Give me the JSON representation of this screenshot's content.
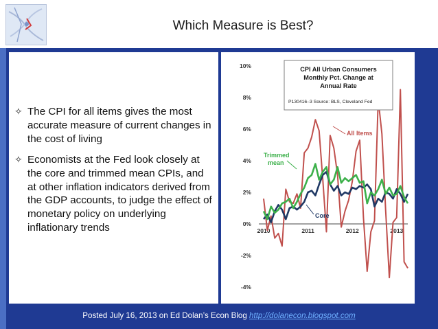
{
  "slide": {
    "title": "Which Measure is Best?",
    "bullets": [
      "The CPI for all items gives the most accurate measure of current changes in the cost of living",
      "Economists at the Fed look closely at the core and trimmed mean CPIs, and at other inflation indicators derived from the GDP accounts, to judge the effect of monetary policy on underlying inflationary trends"
    ],
    "bullet_icon": "four-point-star-outline",
    "footer_text": "Posted July 16, 2013 on Ed Dolan’s Econ Blog ",
    "footer_link": "http://dolanecon.blogspot.com"
  },
  "chart_data": {
    "type": "line",
    "title": "CPI All Urban Consumers Monthly Pct. Change at Annual Rate",
    "subtitle": "P130416–3 Source: BLS, Cleveland Fed",
    "xlabel": "",
    "ylabel": "",
    "x_tick_labels": [
      "2010",
      "2011",
      "2012",
      "2013"
    ],
    "y_tick_labels": [
      "10%",
      "8%",
      "6%",
      "4%",
      "2%",
      "0%",
      "-2%",
      "-4%"
    ],
    "y_ticks": [
      10,
      8,
      6,
      4,
      2,
      0,
      -2,
      -4
    ],
    "ylim": [
      -4,
      10
    ],
    "x": [
      "2010-01",
      "2010-02",
      "2010-03",
      "2010-04",
      "2010-05",
      "2010-06",
      "2010-07",
      "2010-08",
      "2010-09",
      "2010-10",
      "2010-11",
      "2010-12",
      "2011-01",
      "2011-02",
      "2011-03",
      "2011-04",
      "2011-05",
      "2011-06",
      "2011-07",
      "2011-08",
      "2011-09",
      "2011-10",
      "2011-11",
      "2011-12",
      "2012-01",
      "2012-02",
      "2012-03",
      "2012-04",
      "2012-05",
      "2012-06",
      "2012-07",
      "2012-08",
      "2012-09",
      "2012-10",
      "2012-11",
      "2012-12",
      "2013-01",
      "2013-02",
      "2013-03",
      "2013-04"
    ],
    "grid": false,
    "colors": {
      "all_items": "#c0504d",
      "core": "#1f3864",
      "trimmed_mean": "#3cb04a"
    },
    "annotations": [
      "All Items",
      "Trimmed mean",
      "Core"
    ],
    "series": [
      {
        "name": "All Items",
        "values": [
          1.6,
          -0.4,
          0.5,
          -0.9,
          -0.6,
          -1.4,
          2.2,
          1.4,
          1.3,
          1.9,
          1.0,
          4.5,
          4.8,
          5.5,
          6.6,
          5.9,
          2.8,
          -0.5,
          5.6,
          4.8,
          3.1,
          -0.2,
          0.8,
          1.5,
          2.7,
          4.6,
          5.3,
          0.4,
          -3.0,
          -0.5,
          0.2,
          7.9,
          5.7,
          0.9,
          -3.4,
          0.1,
          0.4,
          8.5,
          -2.4,
          -2.8
        ]
      },
      {
        "name": "Core",
        "values": [
          0.3,
          0.6,
          0.1,
          0.8,
          1.2,
          0.9,
          0.3,
          1.0,
          1.1,
          0.9,
          1.1,
          1.4,
          2.0,
          2.1,
          1.8,
          2.5,
          3.1,
          3.3,
          2.5,
          2.1,
          2.4,
          1.8,
          2.0,
          1.9,
          2.3,
          2.2,
          2.4,
          2.3,
          2.5,
          2.2,
          1.1,
          1.6,
          1.4,
          2.0,
          1.9,
          1.6,
          2.2,
          1.9,
          1.4,
          1.9
        ]
      },
      {
        "name": "Trimmed mean",
        "values": [
          0.8,
          0.3,
          1.1,
          0.7,
          0.9,
          1.3,
          1.4,
          1.6,
          1.0,
          1.4,
          1.9,
          2.3,
          2.9,
          3.1,
          3.8,
          2.8,
          3.3,
          3.6,
          2.5,
          2.8,
          3.6,
          2.6,
          2.9,
          2.7,
          2.9,
          3.1,
          2.6,
          2.7,
          1.3,
          2.0,
          1.8,
          2.2,
          2.8,
          1.9,
          2.3,
          1.8,
          1.9,
          2.4,
          1.7,
          1.3
        ]
      }
    ]
  }
}
